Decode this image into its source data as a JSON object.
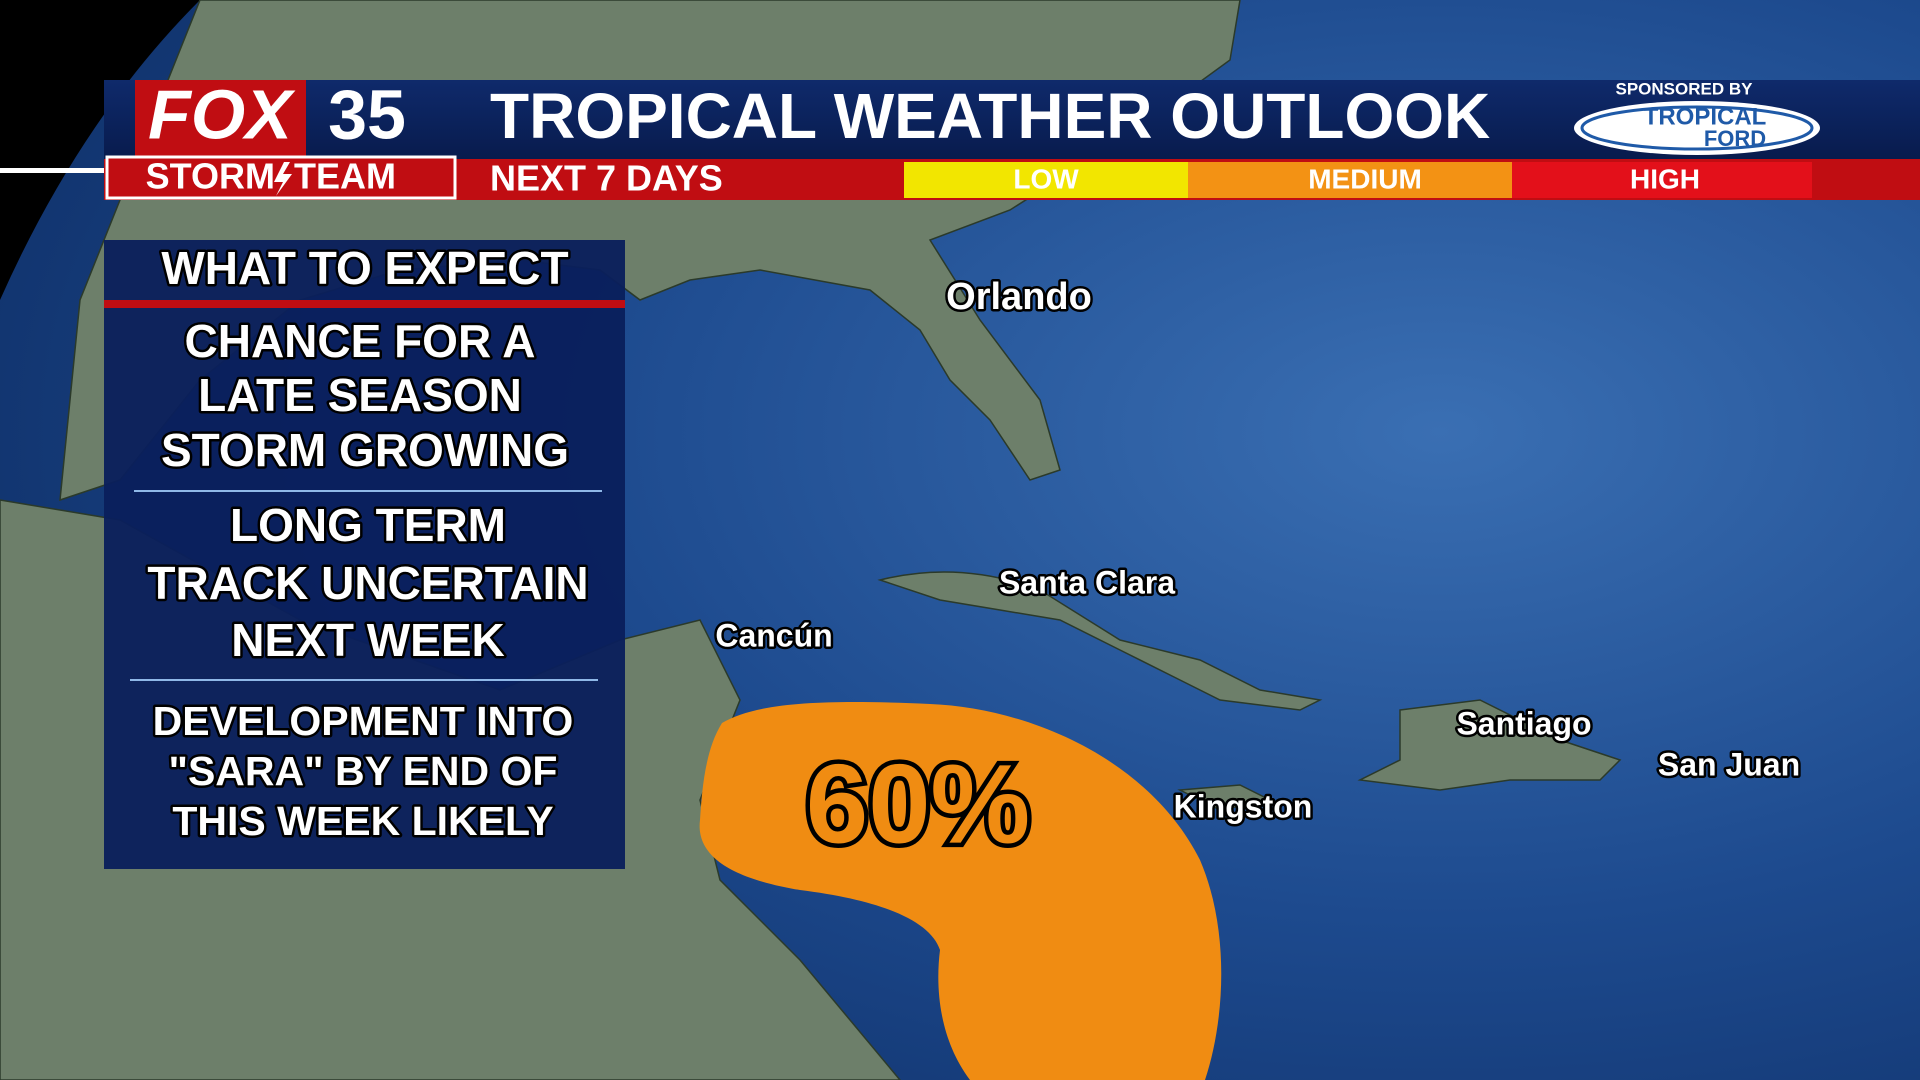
{
  "header": {
    "logo": {
      "brand": "FOX",
      "channel": "35",
      "team_left": "STORM",
      "team_right": "TEAM"
    },
    "title": "TROPICAL WEATHER OUTLOOK",
    "subtitle": "NEXT 7 DAYS",
    "legend": [
      "LOW",
      "MEDIUM",
      "HIGH"
    ],
    "sponsor": {
      "label": "SPONSORED BY",
      "name_top": "TROPICAL",
      "name_bottom": "FORD"
    }
  },
  "panel": {
    "title": "WHAT TO EXPECT",
    "items": [
      [
        "CHANCE FOR A",
        "LATE SEASON",
        "STORM GROWING"
      ],
      [
        "LONG TERM",
        "TRACK UNCERTAIN",
        "NEXT WEEK"
      ],
      [
        "DEVELOPMENT INTO",
        "\"SARA\" BY END OF",
        "THIS WEEK LIKELY"
      ]
    ]
  },
  "map": {
    "cities": [
      "Orlando",
      "Santa Clara",
      "Cancún",
      "Kingston",
      "Santiago",
      "San Juan"
    ],
    "outlook_area": {
      "label": "60%"
    }
  }
}
